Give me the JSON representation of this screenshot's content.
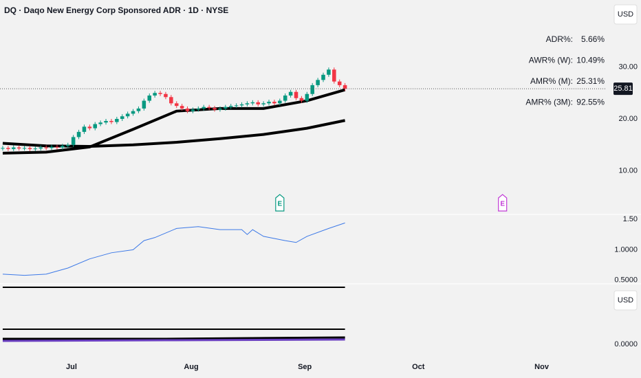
{
  "chart_data": [
    {
      "type": "candlestick",
      "title": "DQ · Daqo New Energy Corp Sponsored ADR · 1D · NYSE",
      "currency": "USD",
      "xlim": [
        -0.5,
        110.9
      ],
      "ylim": [
        1.6,
        42.9
      ],
      "yticks": [
        {
          "value": 30,
          "label": "30.00"
        },
        {
          "value": 20,
          "label": "20.00"
        },
        {
          "value": 10,
          "label": "10.00"
        }
      ],
      "up_color": "#089981",
      "down_color": "#f23645",
      "open": [
        14.3,
        14.4,
        14.2,
        14.5,
        14.3,
        14.4,
        14.2,
        14.3,
        14.5,
        14.4,
        14.6,
        14.5,
        14.8,
        15.0,
        16.5,
        17.5,
        18.5,
        18.2,
        19.0,
        19.3,
        19.6,
        19.4,
        20.0,
        20.5,
        21.0,
        21.5,
        22.0,
        23.5,
        24.5,
        25.0,
        24.8,
        24.2,
        23.0,
        22.5,
        22.0,
        21.5,
        21.8,
        22.0,
        22.3,
        22.1,
        21.8,
        22.0,
        22.3,
        22.5,
        22.6,
        22.8,
        23.0,
        23.2,
        22.8,
        23.0,
        23.3,
        23.0,
        23.5,
        24.5,
        25.2,
        24.0,
        23.5,
        24.8,
        26.5,
        27.5,
        28.5,
        29.5,
        27.2,
        26.5
      ],
      "high": [
        14.8,
        14.8,
        14.9,
        14.9,
        14.8,
        14.8,
        14.7,
        14.9,
        14.9,
        15.0,
        15.0,
        15.2,
        15.4,
        16.9,
        17.9,
        18.9,
        18.9,
        19.4,
        19.7,
        20.0,
        20.0,
        20.4,
        20.9,
        21.4,
        21.9,
        22.4,
        23.9,
        24.9,
        25.4,
        25.4,
        25.2,
        24.6,
        23.4,
        22.9,
        22.4,
        22.2,
        22.4,
        22.7,
        22.7,
        22.5,
        22.4,
        22.7,
        22.9,
        23.0,
        23.2,
        23.4,
        23.6,
        23.6,
        23.4,
        23.7,
        23.7,
        23.9,
        24.9,
        25.6,
        25.6,
        24.4,
        25.2,
        26.9,
        27.9,
        28.9,
        29.9,
        29.9,
        27.6,
        26.9
      ],
      "low": [
        13.9,
        13.8,
        13.8,
        13.9,
        13.9,
        13.8,
        13.8,
        13.9,
        14.0,
        14.0,
        14.1,
        14.1,
        14.4,
        14.6,
        16.1,
        17.1,
        17.8,
        17.8,
        18.6,
        18.9,
        19.0,
        19.0,
        19.6,
        20.1,
        20.6,
        21.1,
        21.6,
        23.1,
        24.1,
        24.4,
        23.8,
        22.6,
        22.1,
        21.6,
        21.1,
        21.1,
        21.4,
        21.6,
        21.7,
        21.4,
        21.4,
        21.6,
        21.9,
        22.1,
        22.2,
        22.4,
        22.6,
        22.4,
        22.4,
        22.6,
        22.6,
        22.6,
        23.1,
        24.1,
        23.6,
        23.1,
        23.1,
        24.4,
        26.1,
        27.1,
        28.1,
        26.8,
        26.1,
        25.41
      ],
      "close": [
        14.4,
        14.2,
        14.5,
        14.3,
        14.4,
        14.2,
        14.3,
        14.5,
        14.4,
        14.6,
        14.5,
        14.8,
        15.0,
        16.5,
        17.5,
        18.5,
        18.2,
        19.0,
        19.3,
        19.6,
        19.4,
        20.0,
        20.5,
        21.0,
        21.5,
        22.0,
        23.5,
        24.5,
        25.0,
        24.8,
        24.2,
        23.0,
        22.5,
        22.0,
        21.5,
        21.8,
        22.0,
        22.3,
        22.1,
        21.8,
        22.0,
        22.3,
        22.5,
        22.6,
        22.8,
        23.0,
        23.2,
        22.8,
        23.0,
        23.3,
        23.0,
        23.5,
        24.5,
        25.2,
        24.0,
        23.5,
        24.8,
        26.5,
        27.5,
        28.5,
        29.5,
        27.2,
        26.5,
        25.81
      ],
      "overlays": [
        {
          "color": "#000000",
          "x": [
            0,
            8,
            16,
            24,
            32,
            40,
            48,
            56,
            63
          ],
          "values": [
            13.4,
            13.6,
            14.6,
            18.0,
            21.5,
            22.0,
            22.0,
            23.5,
            25.6
          ]
        },
        {
          "color": "#000000",
          "x": [
            0,
            8,
            16,
            24,
            32,
            40,
            48,
            56,
            63
          ],
          "values": [
            15.3,
            14.8,
            14.7,
            15.0,
            15.5,
            16.2,
            17.0,
            18.2,
            19.7
          ]
        }
      ],
      "stats": [
        {
          "label": "ADR%:",
          "value": "5.66%"
        },
        {
          "label": "AWR% (W):",
          "value": "10.49%"
        },
        {
          "label": "AMR% (M):",
          "value": "25.31%"
        },
        {
          "label": "AMR% (3M):",
          "value": "92.55%"
        }
      ],
      "events": [
        {
          "x": 51,
          "label": "E",
          "color": "#089981"
        },
        {
          "x": 92,
          "label": "E",
          "color": "#c13ad6"
        }
      ]
    },
    {
      "type": "line",
      "xlim": [
        -0.5,
        110.9
      ],
      "ylim": [
        0.44,
        1.58
      ],
      "yticks": [
        {
          "value": 1.5,
          "label": "1.50"
        },
        {
          "value": 1.0,
          "label": "1.0000"
        },
        {
          "value": 0.5,
          "label": "0.5000"
        }
      ],
      "series": [
        {
          "color": "#3b78e7",
          "x": [
            0,
            4,
            8,
            12,
            16,
            20,
            24,
            26,
            28,
            32,
            36,
            40,
            44,
            45,
            46,
            48,
            52,
            54,
            56,
            60,
            63
          ],
          "values": [
            0.6,
            0.58,
            0.6,
            0.7,
            0.85,
            0.95,
            1.0,
            1.15,
            1.2,
            1.35,
            1.38,
            1.33,
            1.33,
            1.25,
            1.33,
            1.22,
            1.15,
            1.12,
            1.22,
            1.35,
            1.44
          ]
        }
      ]
    },
    {
      "type": "line",
      "currency": "USD",
      "xlim": [
        -0.5,
        110.9
      ],
      "ylim": [
        -0.17,
        0.88
      ],
      "yticks": [
        {
          "value": 0,
          "label": "0.0000"
        }
      ],
      "xticks": [
        {
          "value": 12.66,
          "label": "Jul"
        },
        {
          "value": 34.7,
          "label": "Aug"
        },
        {
          "value": 55.6,
          "label": "Sep"
        },
        {
          "value": 76.5,
          "label": "Oct"
        },
        {
          "value": 99.2,
          "label": "Nov"
        }
      ],
      "series": [
        {
          "color": "#000000",
          "x": [
            0,
            63
          ],
          "values": [
            0.83,
            0.83
          ]
        },
        {
          "color": "#000000",
          "x": [
            0,
            63
          ],
          "values": [
            0.22,
            0.22
          ]
        },
        {
          "color": "#000000",
          "x": [
            0,
            30,
            63
          ],
          "values": [
            0.08,
            0.08,
            0.1
          ]
        },
        {
          "color": "#6a3fc1",
          "x": [
            0,
            30,
            63
          ],
          "values": [
            0.05,
            0.06,
            0.07
          ]
        }
      ]
    }
  ]
}
